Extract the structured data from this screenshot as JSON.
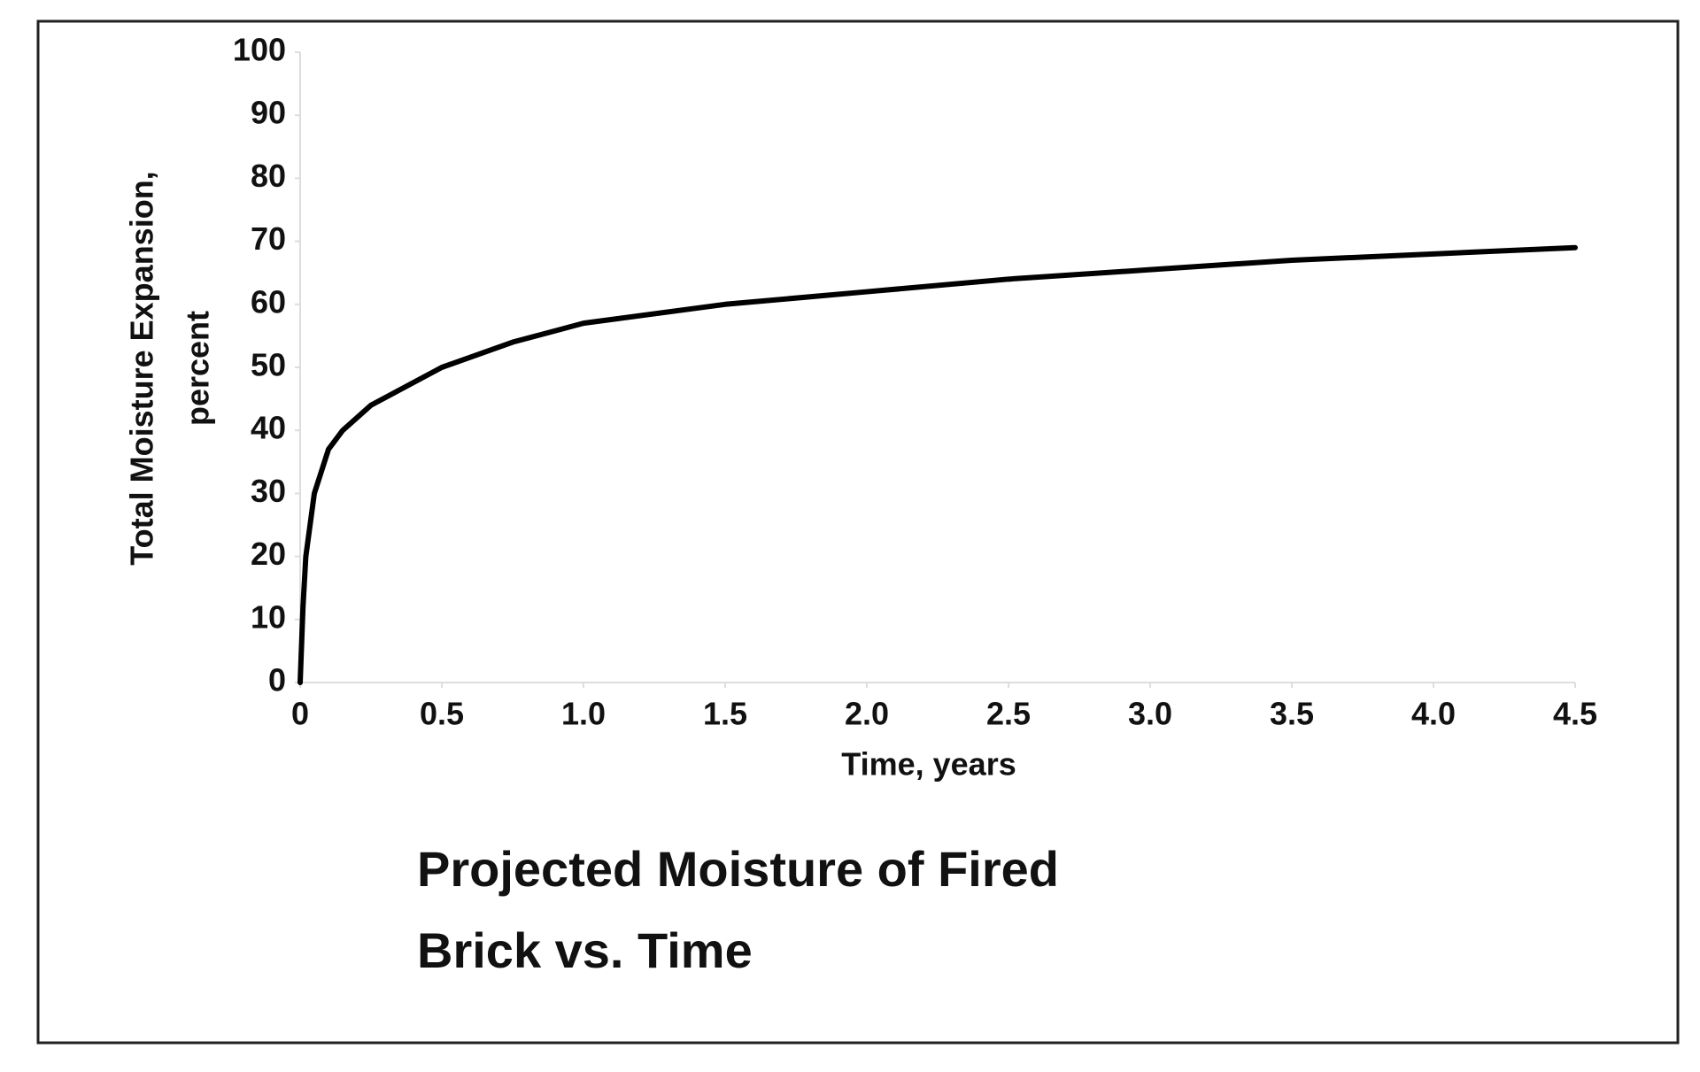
{
  "chart_data": {
    "type": "line",
    "title_lines": [
      "Projected Moisture of Fired",
      "Brick vs. Time"
    ],
    "xlabel": "Time, years",
    "ylabel_lines": [
      "Total Moisture Expansion,",
      "percent"
    ],
    "x": [
      0,
      0.01,
      0.02,
      0.05,
      0.1,
      0.15,
      0.25,
      0.5,
      0.75,
      1.0,
      1.5,
      2.0,
      2.5,
      3.0,
      3.5,
      4.0,
      4.5
    ],
    "series": [
      {
        "color": "#000000",
        "values": [
          0,
          12,
          20,
          30,
          37,
          40,
          44,
          50,
          54,
          57,
          60,
          62,
          64,
          65.5,
          67,
          68,
          69
        ]
      }
    ],
    "xlim": [
      0,
      4.5
    ],
    "ylim": [
      0,
      100
    ],
    "xticks": [
      0,
      0.5,
      {
        "value": 1,
        "label": "1.0"
      },
      1.5,
      {
        "value": 2,
        "label": "2.0"
      },
      2.5,
      {
        "value": 3,
        "label": "3.0"
      },
      3.5,
      {
        "value": 4,
        "label": "4.0"
      },
      4.5
    ],
    "yticks": [
      0,
      10,
      20,
      30,
      40,
      50,
      60,
      70,
      80,
      90,
      100
    ],
    "grid": false
  }
}
